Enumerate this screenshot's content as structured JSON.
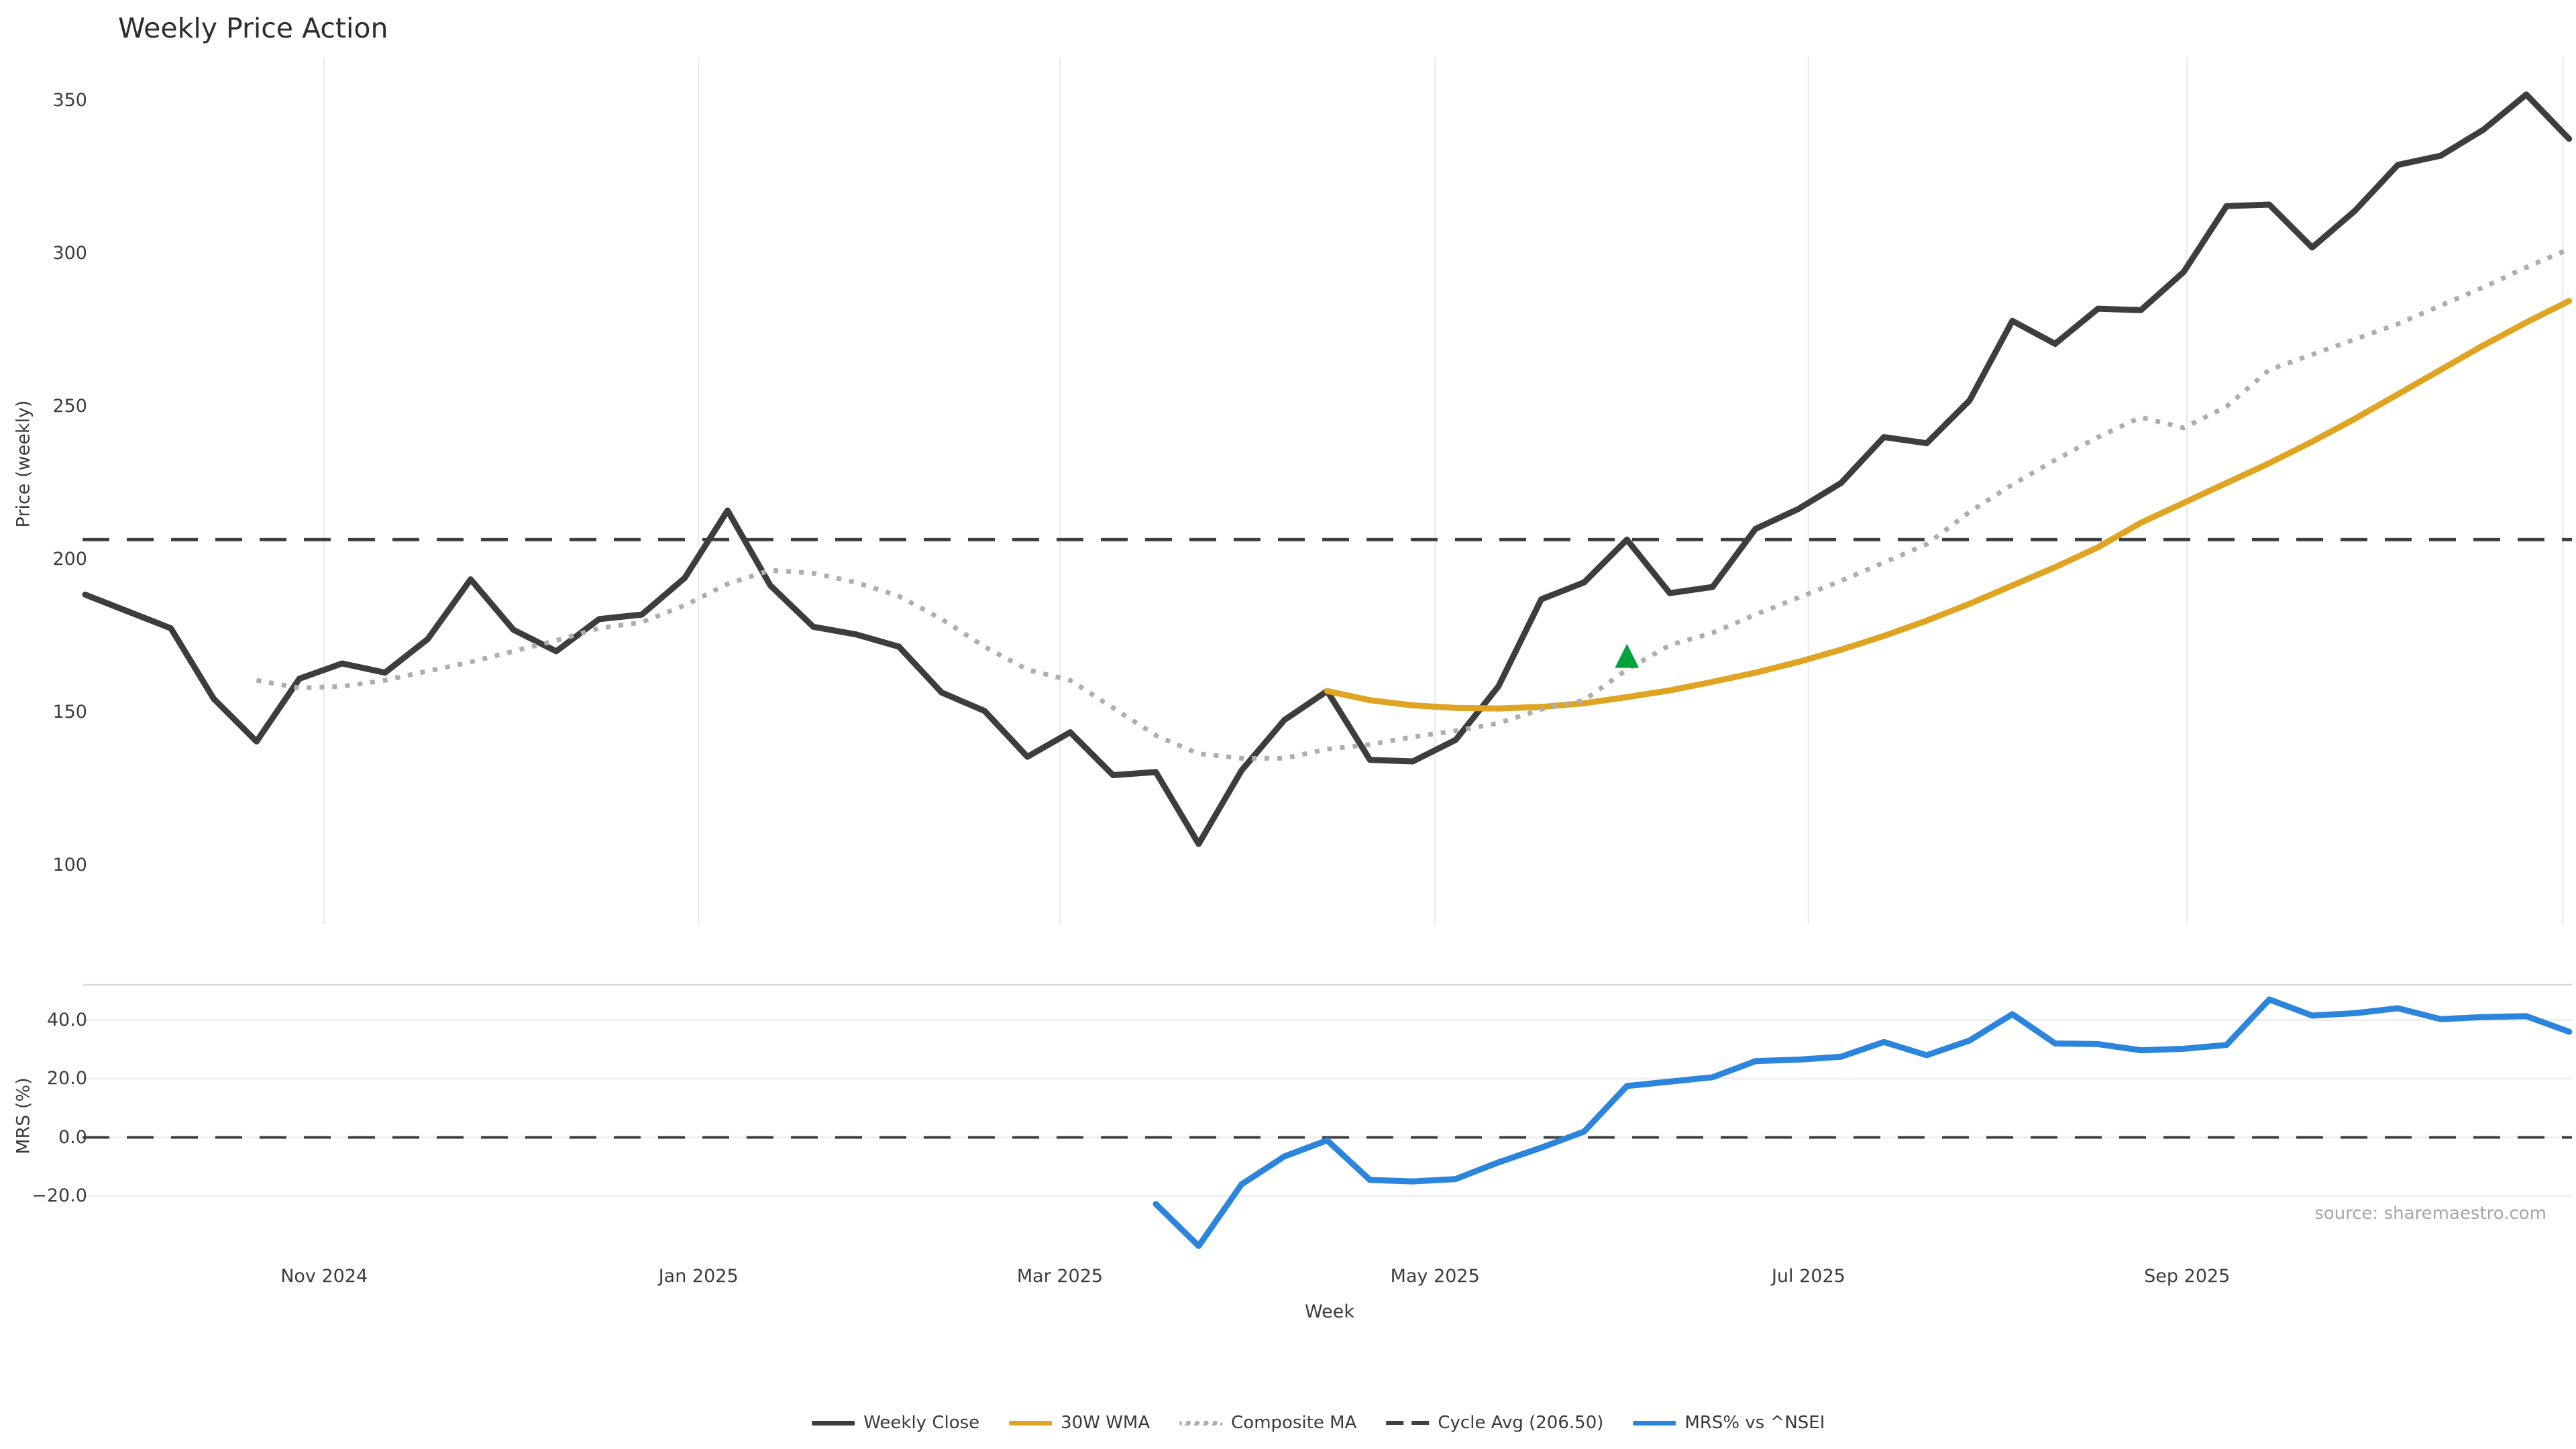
{
  "title": "Weekly Price Action",
  "source_note": "source: sharemaestro.com",
  "colors": {
    "weekly_close": "#3d3d3d",
    "wma30": "#dea422",
    "composite_ma": "#adadad",
    "cycle_avg": "#3f3f3f",
    "mrs_line": "#2b85dc",
    "marker_green": "#00a33b",
    "grid_vertical": "#e9edf2",
    "grid_horizontal": "#ececec",
    "panel_border": "#d9d9d9"
  },
  "axes": {
    "price": {
      "label": "Price (weekly)",
      "ticks": [
        350,
        300,
        250,
        200,
        150,
        100
      ],
      "ylim": [
        85,
        370
      ]
    },
    "mrs": {
      "label": "MRS (%)",
      "tick_labels": [
        "40.0",
        "20.0",
        "0.0",
        "−20.0"
      ],
      "tick_values": [
        40,
        20,
        0,
        -20
      ],
      "ylim": [
        -41,
        52
      ]
    },
    "x": {
      "label": "Week",
      "months": [
        {
          "label": "Nov 2024",
          "week": 5.58
        },
        {
          "label": "Jan 2025",
          "week": 14.32
        },
        {
          "label": "Mar 2025",
          "week": 22.76
        },
        {
          "label": "May 2025",
          "week": 31.52
        },
        {
          "label": "Jul 2025",
          "week": 40.24
        },
        {
          "label": "Sep 2025",
          "week": 49.08
        },
        {
          "label": "",
          "week": 57.85
        }
      ],
      "n_weeks": 59
    }
  },
  "legend": [
    {
      "label": "Weekly Close",
      "swatch": "solid-dark"
    },
    {
      "label": "30W WMA",
      "swatch": "solid-gold"
    },
    {
      "label": "Composite MA",
      "swatch": "dotted-gray"
    },
    {
      "label": "Cycle Avg (206.50)",
      "swatch": "dashed-dark"
    },
    {
      "label": "MRS% vs ^NSEI",
      "swatch": "solid-blue"
    }
  ],
  "chart_data": [
    {
      "type": "line",
      "panel": "price",
      "name": "Weekly Close",
      "color_key": "weekly_close",
      "style": "solid",
      "width": 9,
      "week_start": 0,
      "values": [
        188.5,
        183,
        177.5,
        154.5,
        140.5,
        161,
        166,
        163,
        174,
        193.5,
        177,
        170,
        180.5,
        182,
        194,
        216,
        191.5,
        178,
        175.5,
        171.5,
        156.5,
        150.5,
        135.5,
        143.5,
        129.5,
        130.5,
        107,
        131,
        147.5,
        157,
        134.5,
        134,
        141,
        158.5,
        187,
        192.5,
        206.5,
        189,
        191,
        210,
        216.5,
        225,
        240,
        238,
        252,
        278,
        270.5,
        282,
        281.5,
        294,
        315.5,
        316,
        302,
        314,
        329,
        332,
        340.5,
        352,
        337.5
      ]
    },
    {
      "type": "line",
      "panel": "price",
      "name": "30W WMA",
      "color_key": "wma30",
      "style": "solid",
      "width": 9,
      "week_start": 29,
      "values": [
        157,
        154,
        152.3,
        151.5,
        151.3,
        151.8,
        153,
        155,
        157.2,
        160,
        163,
        166.5,
        170.5,
        175,
        180,
        185.5,
        191.5,
        197.5,
        204,
        212,
        218.5,
        225,
        231.5,
        238.5,
        246,
        254,
        262,
        270,
        277.5,
        284.5
      ]
    },
    {
      "type": "line",
      "panel": "price",
      "name": "Composite MA",
      "color_key": "composite_ma",
      "style": "dotted",
      "width": 7,
      "week_start": 4,
      "values": [
        160.5,
        158,
        158.5,
        160.5,
        163.5,
        166.5,
        170,
        173.5,
        177.5,
        179.5,
        185,
        192,
        196.5,
        195.5,
        192.5,
        188,
        180.5,
        171.5,
        164,
        160.5,
        151.5,
        142.5,
        136.5,
        135,
        135,
        138,
        139.5,
        142,
        144,
        146.5,
        151,
        154,
        164,
        172,
        176,
        182,
        187.5,
        193,
        199,
        205,
        215.5,
        224.5,
        232.5,
        240,
        246.5,
        243,
        250,
        262,
        267,
        272,
        277,
        283,
        289,
        295.5,
        301.5
      ]
    },
    {
      "type": "hline",
      "panel": "price",
      "name": "Cycle Avg (206.50)",
      "color_key": "cycle_avg",
      "style": "dashed",
      "width": 5,
      "value": 206.5
    },
    {
      "type": "hline",
      "panel": "mrs",
      "name": "MRS zero line",
      "color_key": "cycle_avg",
      "style": "dashed",
      "width": 4,
      "value": 0
    },
    {
      "type": "line",
      "panel": "mrs",
      "name": "MRS% vs ^NSEI",
      "color_key": "mrs_line",
      "style": "solid",
      "width": 9,
      "week_start": 25,
      "values": [
        -22.7,
        -37,
        -16,
        -6.5,
        -1,
        -14.5,
        -15,
        -14.2,
        -8.5,
        -3.5,
        2,
        17.5,
        19,
        20.5,
        26,
        26.5,
        27.5,
        32.5,
        28,
        33,
        42,
        32,
        31.8,
        29.7,
        30.2,
        31.5,
        47,
        41.5,
        42.3,
        44,
        40.3,
        41,
        41.3,
        36
      ]
    },
    {
      "type": "marker",
      "panel": "price",
      "name": "signal marker",
      "shape": "triangle-up",
      "color_key": "marker_green",
      "week": 36,
      "value": 168.5,
      "size": 36
    }
  ]
}
